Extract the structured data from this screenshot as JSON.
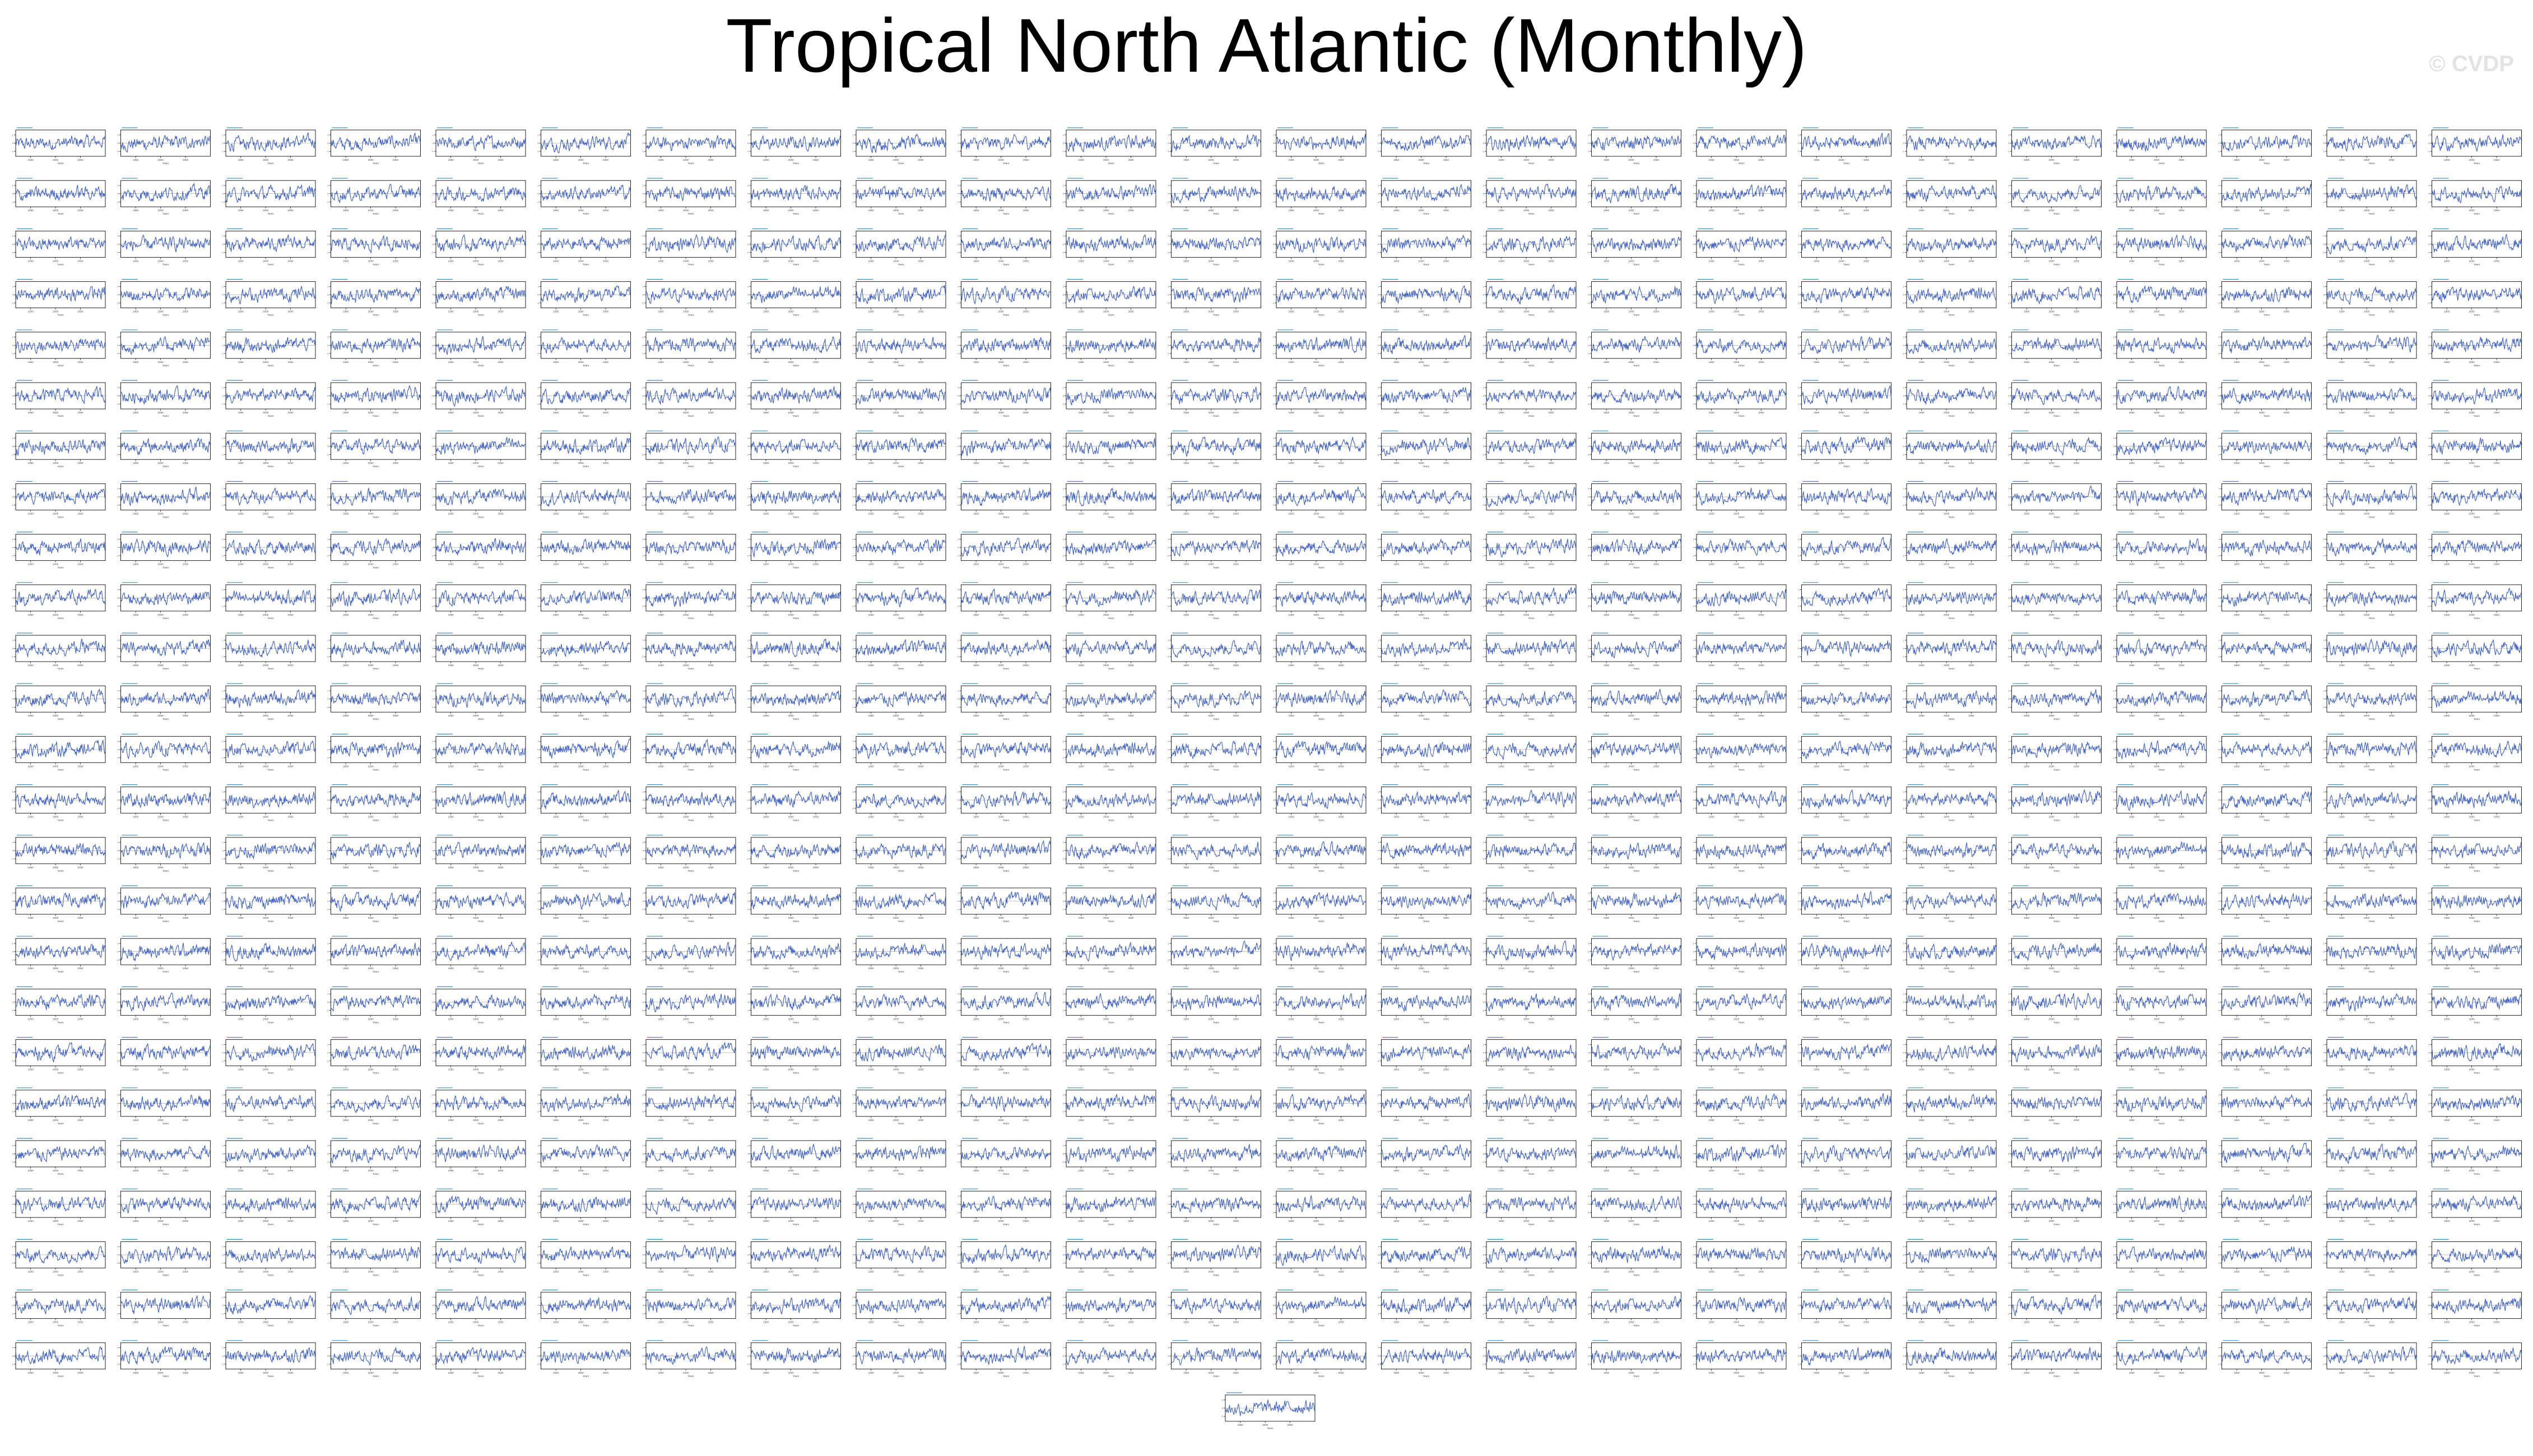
{
  "title": "Tropical North Atlantic (Monthly)",
  "watermark": "© CVDP",
  "colors": {
    "series": "#3d5fc4",
    "frame": "#222222",
    "zero_line": "#999999",
    "panel_title": "#3a8fbf",
    "background": "#ffffff"
  },
  "chart_data": {
    "type": "line",
    "layout": "small-multiples grid, 24 columns x 25 rows plus 1 centered panel below",
    "panel_count": 601,
    "series_name": "",
    "xlabel": "Years",
    "ylabel": "",
    "grid": false,
    "legend": "none",
    "x_ticks": [
      "1950",
      "2000",
      "2050"
    ],
    "y_ticks": [
      "-1",
      "0",
      "1"
    ],
    "xlim": [
      1920,
      2100
    ],
    "ylim": [
      -1.6,
      1.6
    ],
    "note": "individual panel values are not legible at this resolution; each panel is a noisy monthly anomaly time series around 0 with a slight upward trend"
  }
}
